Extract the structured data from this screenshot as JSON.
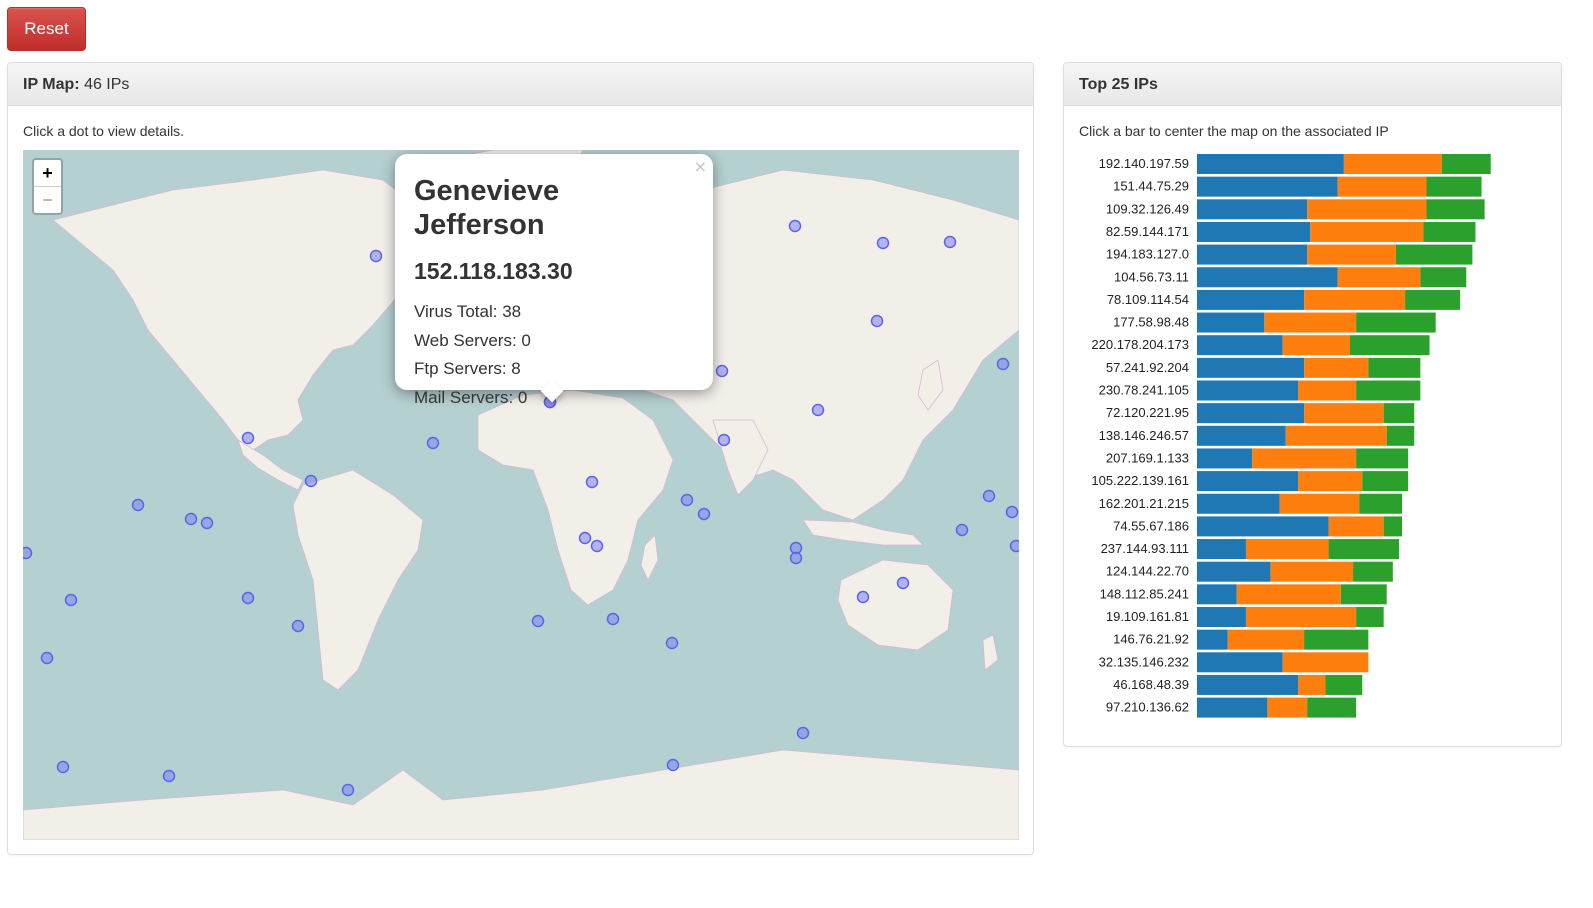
{
  "reset_label": "Reset",
  "map_panel": {
    "title": "IP Map:",
    "subtitle": "46 IPs",
    "hint": "Click a dot to view details.",
    "zoom_in": "+",
    "zoom_out": "−"
  },
  "popup": {
    "name": "Genevieve Jefferson",
    "ip": "152.118.183.30",
    "virus_total": "Virus Total: 38",
    "web_servers": "Web Servers: 0",
    "ftp_servers": "Ftp Servers: 8",
    "mail_servers": "Mail Servers: 0",
    "close": "×"
  },
  "chart_panel": {
    "title": "Top 25 IPs",
    "hint": "Click a bar to center the map on the associated IP"
  },
  "colors": {
    "blue": "#1f77b4",
    "orange": "#ff7f0e",
    "green": "#2ca02c",
    "water": "#b5d0d0",
    "land": "#f2efe9",
    "dot": "#7b83f5"
  },
  "chart_data": {
    "type": "bar",
    "orientation": "horizontal",
    "stacked": true,
    "categories": [
      "192.140.197.59",
      "151.44.75.29",
      "109.32.126.49",
      "82.59.144.171",
      "194.183.127.0",
      "104.56.73.11",
      "78.109.114.54",
      "177.58.98.48",
      "220.178.204.173",
      "57.241.92.204",
      "230.78.241.105",
      "72.120.221.95",
      "138.146.246.57",
      "207.169.1.133",
      "105.222.139.161",
      "162.201.21.215",
      "74.55.67.186",
      "237.144.93.111",
      "124.144.22.70",
      "148.112.85.241",
      "19.109.161.81",
      "146.76.21.92",
      "32.135.146.232",
      "46.168.48.39",
      "97.210.136.62"
    ],
    "series": [
      {
        "color": "#1f77b4",
        "values": [
          48,
          46,
          36,
          37,
          36,
          46,
          35,
          22,
          28,
          35,
          33,
          35,
          29,
          18,
          33,
          27,
          43,
          16,
          24,
          13,
          16,
          10,
          28,
          33,
          23
        ]
      },
      {
        "color": "#ff7f0e",
        "values": [
          32,
          29,
          39,
          37,
          29,
          27,
          33,
          30,
          22,
          21,
          19,
          26,
          33,
          34,
          21,
          26,
          18,
          27,
          27,
          34,
          36,
          25,
          28,
          9,
          13
        ]
      },
      {
        "color": "#2ca02c",
        "values": [
          16,
          18,
          19,
          17,
          25,
          15,
          18,
          26,
          26,
          17,
          21,
          10,
          9,
          17,
          15,
          14,
          6,
          23,
          13,
          15,
          9,
          21,
          0,
          12,
          16
        ]
      }
    ]
  }
}
